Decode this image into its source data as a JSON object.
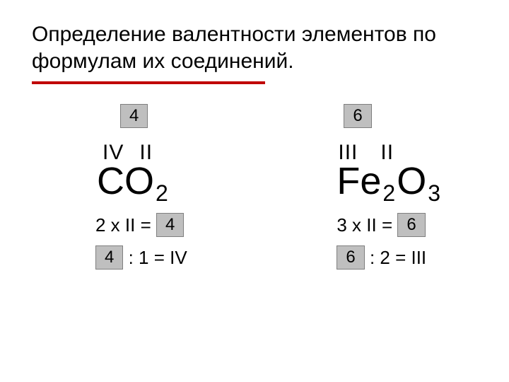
{
  "title": "Определение валентности элементов по формулам их соединений.",
  "accent_color": "#c00000",
  "box_bg": "#bfbfbf",
  "box_border": "#7f7f7f",
  "left": {
    "top_box": "4",
    "valence_a": "IV",
    "valence_b": "II",
    "elem_a": "C",
    "elem_b": "O",
    "sub_b": "2",
    "eq1_text": "2 x II = ",
    "eq1_box": "4",
    "eq2_box": "4",
    "eq2_text": " : 1 = IV"
  },
  "right": {
    "top_box": "6",
    "valence_a": "III",
    "valence_b": "II",
    "elem_a": "Fe",
    "sub_a": "2",
    "elem_b": "O",
    "sub_b": "3",
    "eq1_text": "3 x II = ",
    "eq1_box": "6",
    "eq2_box": "6",
    "eq2_text": " : 2 = III"
  }
}
